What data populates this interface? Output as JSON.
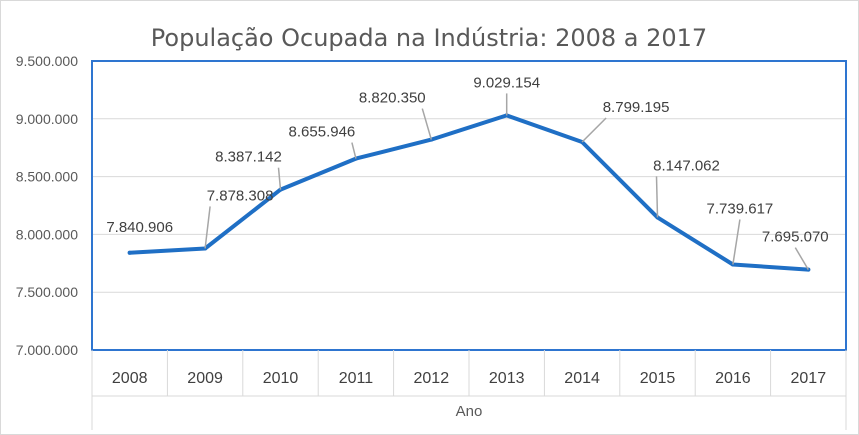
{
  "chart_data": {
    "type": "line",
    "title": "População Ocupada na Indústria: 2008 a 2017",
    "xlabel": "Ano",
    "ylabel": "",
    "categories": [
      "2008",
      "2009",
      "2010",
      "2011",
      "2012",
      "2013",
      "2014",
      "2015",
      "2016",
      "2017"
    ],
    "values": [
      7840906,
      7878308,
      8387142,
      8655946,
      8820350,
      9029154,
      8799195,
      8147062,
      7739617,
      7695070
    ],
    "data_labels": [
      "7.840.906",
      "7.878.308",
      "8.387.142",
      "8.655.946",
      "8.820.350",
      "9.029.154",
      "8.799.195",
      "8.147.062",
      "7.739.617",
      "7.695.070"
    ],
    "ylim": [
      7000000,
      9500000
    ],
    "yticks": [
      7000000,
      7500000,
      8000000,
      8500000,
      9000000,
      9500000
    ],
    "ytick_labels": [
      "7.000.000",
      "7.500.000",
      "8.000.000",
      "8.500.000",
      "9.000.000",
      "9.500.000"
    ],
    "grid": true,
    "legend": "none",
    "colors": {
      "line": "#1f6fc5",
      "grid": "#d9d9d9",
      "frame": "#2e75d0",
      "leader": "#a6a6a6"
    }
  }
}
